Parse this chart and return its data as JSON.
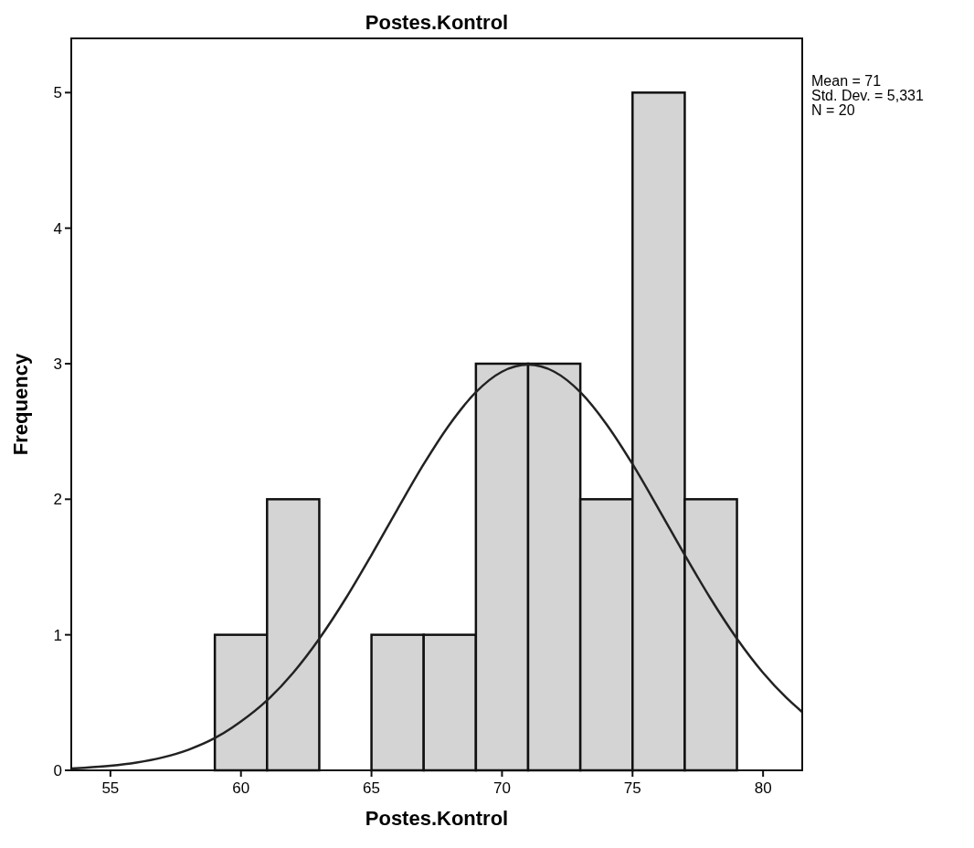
{
  "chart_data": {
    "type": "histogram",
    "title": "Postes.Kontrol",
    "xlabel": "Postes.Kontrol",
    "ylabel": "Frequency",
    "bins": [
      59,
      61,
      63,
      65,
      67,
      69,
      71,
      73,
      75,
      77,
      79
    ],
    "values": [
      1,
      2,
      0,
      1,
      1,
      3,
      3,
      2,
      5,
      2
    ],
    "color": "#d4d4d4",
    "xlim": [
      53.5,
      81.5
    ],
    "xticks": [
      55,
      60,
      65,
      70,
      75,
      80
    ],
    "ylim": [
      0,
      5.4
    ],
    "yticks": [
      0,
      1,
      2,
      3,
      4,
      5
    ],
    "series": [
      {
        "type": "line",
        "color": "#222222",
        "x": [
          53.5,
          54,
          55,
          56,
          57,
          58,
          59,
          60,
          61,
          62,
          63,
          64,
          65,
          66,
          67,
          68,
          69,
          70,
          71,
          72,
          73,
          74,
          75,
          76,
          77,
          78,
          79,
          80,
          81,
          81.5
        ],
        "values": [
          0.014,
          0.019,
          0.033,
          0.057,
          0.095,
          0.153,
          0.238,
          0.36,
          0.516,
          0.72,
          0.971,
          1.264,
          1.589,
          1.928,
          2.259,
          2.554,
          2.79,
          2.941,
          2.993,
          2.941,
          2.79,
          2.554,
          2.259,
          1.928,
          1.589,
          1.264,
          0.971,
          0.72,
          0.516,
          0.43
        ]
      }
    ],
    "annotations": [
      "Mean = 71",
      "Std. Dev. = 5,331",
      "N = 20"
    ],
    "grid": false
  }
}
